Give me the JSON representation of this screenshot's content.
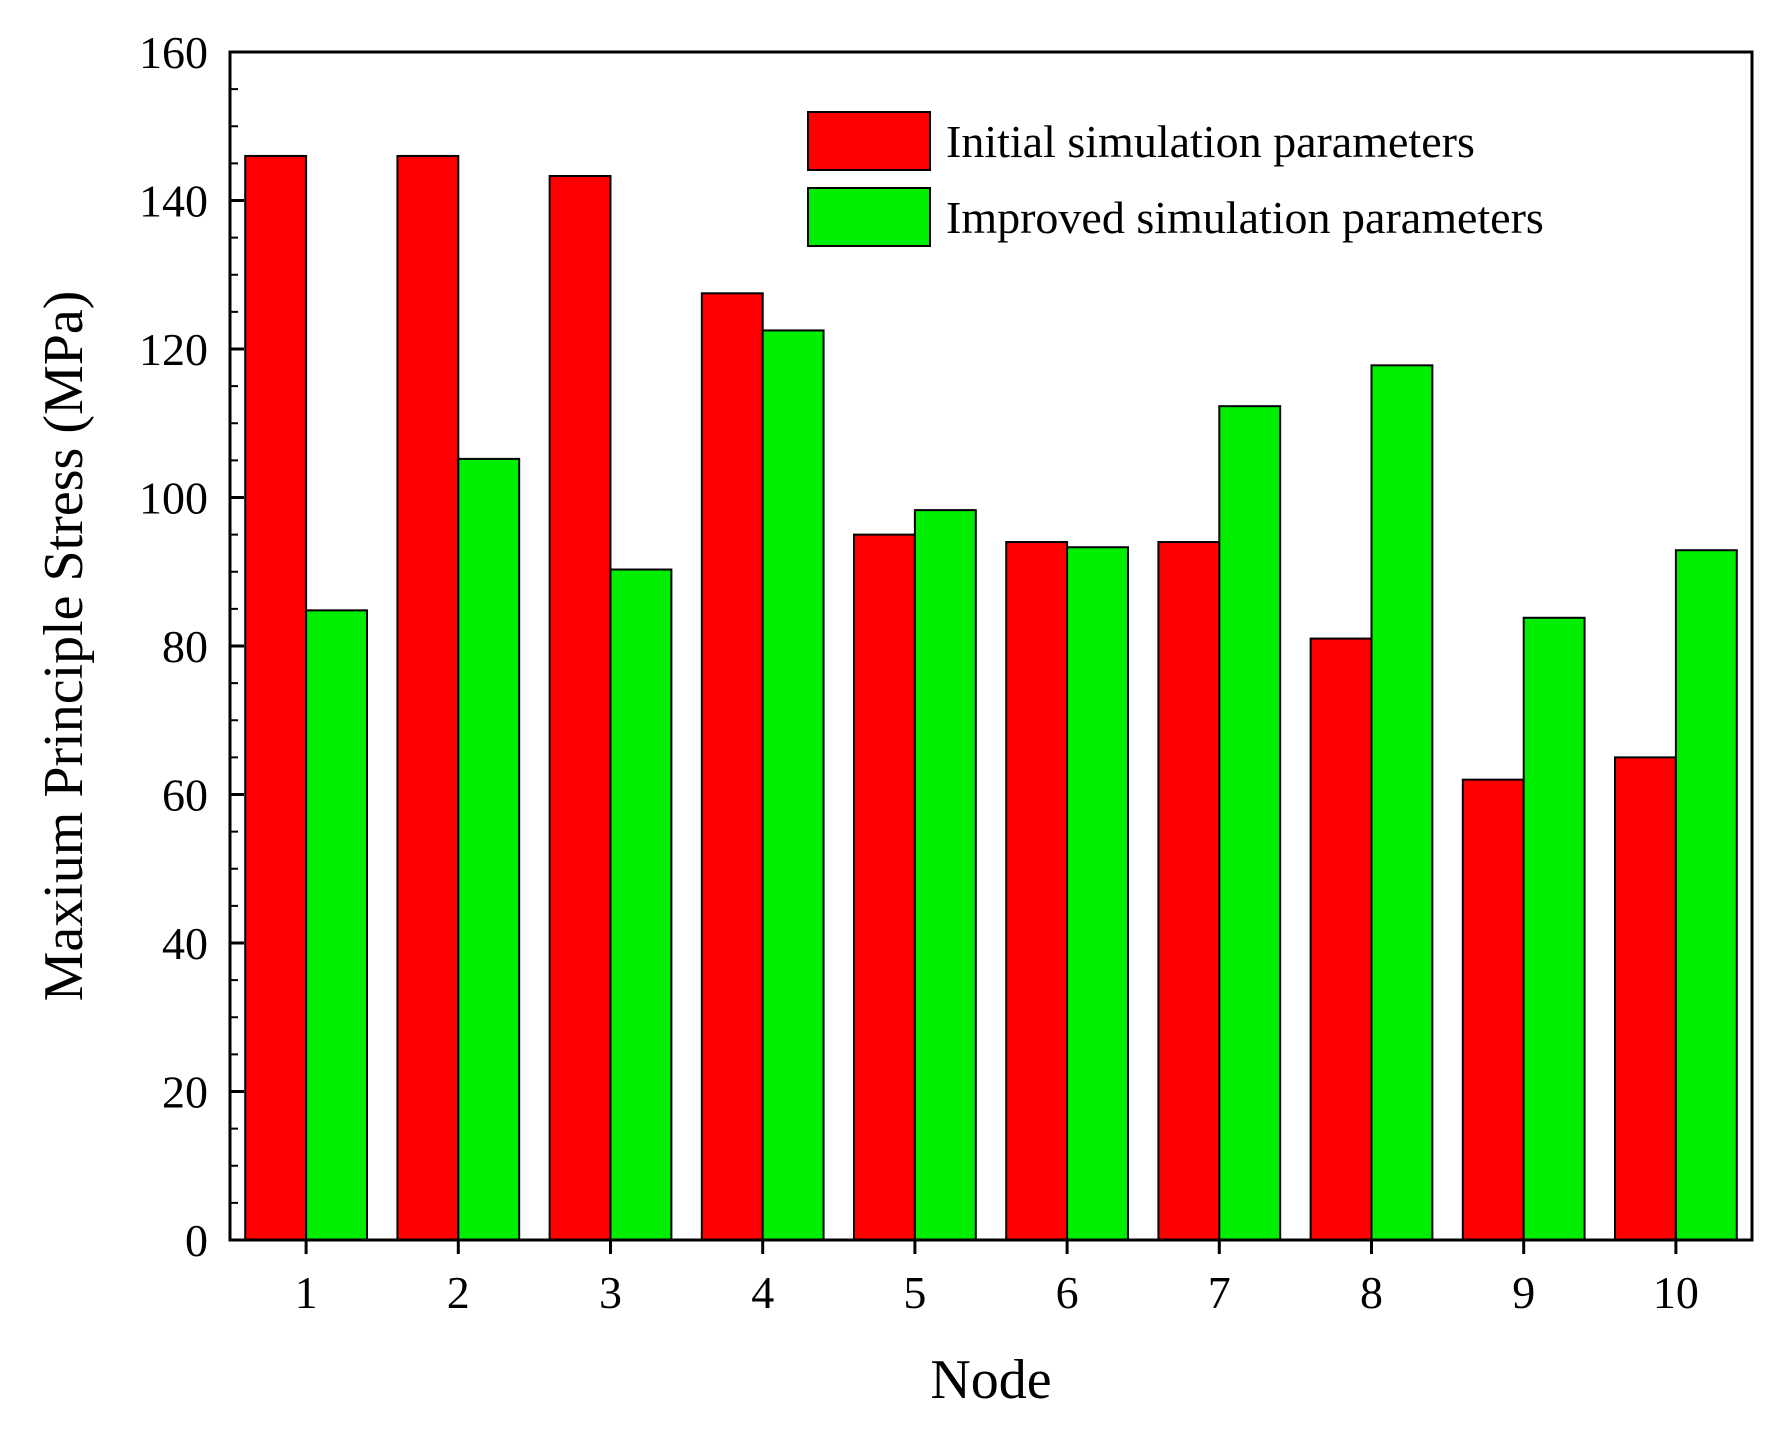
{
  "chart_data": {
    "type": "bar",
    "title": "",
    "xlabel": "Node",
    "ylabel": "Maxium Principle Stress (MPa)",
    "ylim": [
      0,
      160
    ],
    "yticks": [
      0,
      20,
      40,
      60,
      80,
      100,
      120,
      140,
      160
    ],
    "categories": [
      "1",
      "2",
      "3",
      "4",
      "5",
      "6",
      "7",
      "8",
      "9",
      "10"
    ],
    "series": [
      {
        "name": "Initial simulation parameters",
        "color": "#ff0000",
        "values": [
          146,
          146,
          143.3,
          127.5,
          95,
          94,
          94,
          81,
          62,
          65
        ]
      },
      {
        "name": "Improved simulation parameters",
        "color": "#00ee00",
        "values": [
          84.8,
          105.2,
          90.3,
          122.5,
          98.3,
          93.3,
          112.3,
          117.8,
          83.8,
          92.9
        ]
      }
    ],
    "legend_position": "top-right",
    "grid": false
  }
}
